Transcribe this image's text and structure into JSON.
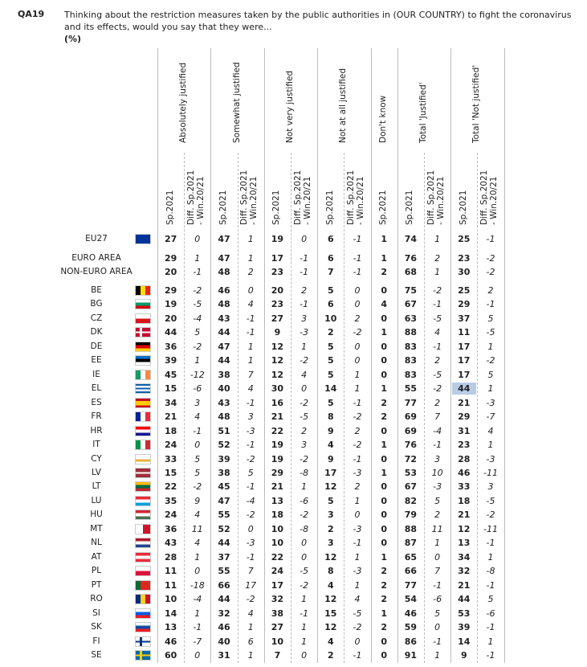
{
  "header": {
    "code": "QA19",
    "question": "Thinking about the restriction measures taken by the public authorities in (OUR COUNTRY) to fight the coronavirus and its effects, would you say that they were...",
    "unit": "(%)"
  },
  "columns": [
    {
      "label": "Absolutely justified",
      "subheaders": [
        [
          "Sp.2021"
        ],
        [
          "Diff. Sp.2021",
          "- Win.20/21"
        ]
      ]
    },
    {
      "label": "Somewhat justified",
      "subheaders": [
        [
          "Sp.2021"
        ],
        [
          "Diff. Sp.2021",
          "- Win.20/21"
        ]
      ]
    },
    {
      "label": "Not very justified",
      "subheaders": [
        [
          "Sp.2021"
        ],
        [
          "Diff. Sp.2021",
          "- Win.20/21"
        ]
      ]
    },
    {
      "label": "Not at all justified",
      "subheaders": [
        [
          "Sp.2021"
        ],
        [
          "Diff. Sp.2021",
          "- Win.20/21"
        ]
      ]
    },
    {
      "label": "Don't know",
      "subheaders": [
        [
          "Sp.2021"
        ]
      ]
    },
    {
      "label": "Total 'Justified'",
      "subheaders": [
        [
          "Sp.2021"
        ],
        [
          "Diff. Sp.2021",
          "- Win.20/21"
        ]
      ]
    },
    {
      "label": "Total 'Not justified'",
      "subheaders": [
        [
          "Sp.2021"
        ],
        [
          "Diff. Sp.2021",
          "- Win.20/21"
        ]
      ]
    }
  ],
  "rows": [
    {
      "label": "EU27",
      "values": [
        27,
        0,
        47,
        1,
        19,
        0,
        6,
        -1,
        1,
        74,
        1,
        25,
        -1
      ]
    },
    {
      "label": "EURO AREA",
      "values": [
        29,
        1,
        47,
        1,
        17,
        -1,
        6,
        -1,
        1,
        76,
        2,
        23,
        -2
      ]
    },
    {
      "label": "NON-EURO AREA",
      "values": [
        20,
        -1,
        48,
        2,
        23,
        -1,
        7,
        -1,
        2,
        68,
        1,
        30,
        -2
      ]
    },
    {
      "label": "BE",
      "values": [
        29,
        -2,
        46,
        0,
        20,
        2,
        5,
        0,
        0,
        75,
        -2,
        25,
        2
      ]
    },
    {
      "label": "BG",
      "values": [
        19,
        -5,
        48,
        4,
        23,
        -1,
        6,
        0,
        4,
        67,
        -1,
        29,
        -1
      ]
    },
    {
      "label": "CZ",
      "values": [
        20,
        -4,
        43,
        -1,
        27,
        3,
        10,
        2,
        0,
        63,
        -5,
        37,
        5
      ]
    },
    {
      "label": "DK",
      "values": [
        44,
        5,
        44,
        -1,
        9,
        -3,
        2,
        -2,
        1,
        88,
        4,
        11,
        -5
      ]
    },
    {
      "label": "DE",
      "values": [
        36,
        -2,
        47,
        1,
        12,
        1,
        5,
        0,
        0,
        83,
        -1,
        17,
        1
      ]
    },
    {
      "label": "EE",
      "values": [
        39,
        1,
        44,
        1,
        12,
        -2,
        5,
        0,
        0,
        83,
        2,
        17,
        -2
      ]
    },
    {
      "label": "IE",
      "values": [
        45,
        -12,
        38,
        7,
        12,
        4,
        5,
        1,
        0,
        83,
        -5,
        17,
        5
      ]
    },
    {
      "label": "EL",
      "values": [
        15,
        -6,
        40,
        4,
        30,
        0,
        14,
        1,
        1,
        55,
        -2,
        44,
        1
      ]
    },
    {
      "label": "ES",
      "values": [
        34,
        3,
        43,
        -1,
        16,
        -2,
        5,
        -1,
        2,
        77,
        2,
        21,
        -3
      ]
    },
    {
      "label": "FR",
      "values": [
        21,
        4,
        48,
        3,
        21,
        -5,
        8,
        -2,
        2,
        69,
        7,
        29,
        -7
      ]
    },
    {
      "label": "HR",
      "values": [
        18,
        -1,
        51,
        -3,
        22,
        2,
        9,
        2,
        0,
        69,
        -4,
        31,
        4
      ]
    },
    {
      "label": "IT",
      "values": [
        24,
        0,
        52,
        -1,
        19,
        3,
        4,
        -2,
        1,
        76,
        -1,
        23,
        1
      ]
    },
    {
      "label": "CY",
      "values": [
        33,
        5,
        39,
        -2,
        19,
        -2,
        9,
        -1,
        0,
        72,
        3,
        28,
        -3
      ]
    },
    {
      "label": "LV",
      "values": [
        15,
        5,
        38,
        5,
        29,
        -8,
        17,
        -3,
        1,
        53,
        10,
        46,
        -11
      ]
    },
    {
      "label": "LT",
      "values": [
        22,
        -2,
        45,
        -1,
        21,
        1,
        12,
        2,
        0,
        67,
        -3,
        33,
        3
      ]
    },
    {
      "label": "LU",
      "values": [
        35,
        9,
        47,
        -4,
        13,
        -6,
        5,
        1,
        0,
        82,
        5,
        18,
        -5
      ]
    },
    {
      "label": "HU",
      "values": [
        24,
        4,
        55,
        -2,
        18,
        -2,
        3,
        0,
        0,
        79,
        2,
        21,
        -2
      ]
    },
    {
      "label": "MT",
      "values": [
        36,
        11,
        52,
        0,
        10,
        -8,
        2,
        -3,
        0,
        88,
        11,
        12,
        -11
      ]
    },
    {
      "label": "NL",
      "values": [
        43,
        4,
        44,
        -3,
        10,
        0,
        3,
        -1,
        0,
        87,
        1,
        13,
        -1
      ]
    },
    {
      "label": "AT",
      "values": [
        28,
        1,
        37,
        -1,
        22,
        0,
        12,
        1,
        1,
        65,
        0,
        34,
        1
      ]
    },
    {
      "label": "PL",
      "values": [
        11,
        0,
        55,
        7,
        24,
        -5,
        8,
        -3,
        2,
        66,
        7,
        32,
        -8
      ]
    },
    {
      "label": "PT",
      "values": [
        11,
        -18,
        66,
        17,
        17,
        -2,
        4,
        1,
        2,
        77,
        -1,
        21,
        -1
      ]
    },
    {
      "label": "RO",
      "values": [
        10,
        -4,
        44,
        -2,
        32,
        1,
        12,
        4,
        2,
        54,
        -6,
        44,
        5
      ]
    },
    {
      "label": "SI",
      "values": [
        14,
        1,
        32,
        4,
        38,
        -1,
        15,
        -5,
        1,
        46,
        5,
        53,
        -6
      ]
    },
    {
      "label": "SK",
      "values": [
        13,
        -1,
        46,
        1,
        27,
        1,
        12,
        -2,
        2,
        59,
        0,
        39,
        -1
      ]
    },
    {
      "label": "FI",
      "values": [
        46,
        -7,
        40,
        6,
        10,
        1,
        4,
        0,
        0,
        86,
        -1,
        14,
        1
      ]
    },
    {
      "label": "SE",
      "values": [
        60,
        0,
        31,
        1,
        7,
        0,
        2,
        -1,
        0,
        91,
        1,
        9,
        -1
      ]
    }
  ],
  "highlighted_cell": {
    "row": 10,
    "col": 11
  }
}
